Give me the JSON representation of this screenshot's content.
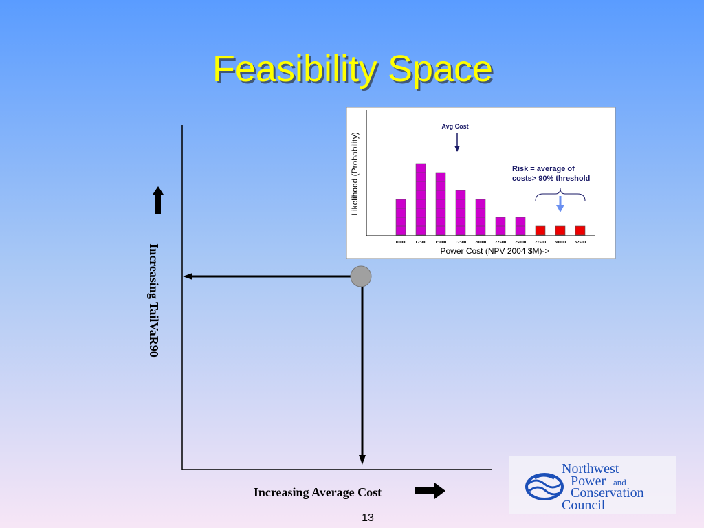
{
  "title": "Feasibility Space",
  "y_axis_label": "Increasing TailVaR90",
  "x_axis_label": "Increasing Average Cost",
  "page_number": "13",
  "logo": {
    "lines": [
      "Northwest",
      "Power",
      "and",
      "Conservation",
      "Council"
    ]
  },
  "chart_data": {
    "type": "bar",
    "x_label": "Power Cost (NPV 2004 $M)->",
    "y_label": "Likelihood (Probability)",
    "annotations": [
      "Avg Cost",
      "Risk = average of",
      "costs> 90% threshold"
    ],
    "categories": [
      "10000",
      "12500",
      "15000",
      "17500",
      "20000",
      "22500",
      "25000",
      "27500",
      "30000",
      "32500"
    ],
    "values": [
      4,
      8,
      7,
      5,
      4,
      2,
      2,
      1,
      1,
      1
    ],
    "colors": [
      "#cc00cc",
      "#cc00cc",
      "#cc00cc",
      "#cc00cc",
      "#cc00cc",
      "#cc00cc",
      "#cc00cc",
      "#ee0000",
      "#ee0000",
      "#ee0000"
    ]
  }
}
